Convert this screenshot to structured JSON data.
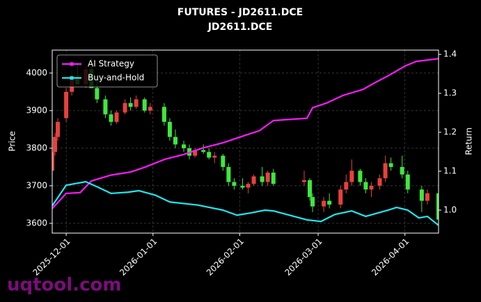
{
  "chart_data": {
    "type": "candlestick",
    "title": "FUTURES - JD2611.DCE",
    "subtitle": "JD2611.DCE",
    "ylabel": "Price",
    "y2label": "Return",
    "watermark": "uqtool.com",
    "x": [
      "2025-11-26",
      "2025-11-27",
      "2025-11-28",
      "2025-12-01",
      "2025-12-03",
      "2025-12-05",
      "2025-12-08",
      "2025-12-10",
      "2025-12-12",
      "2025-12-15",
      "2025-12-17",
      "2025-12-19",
      "2025-12-22",
      "2025-12-24",
      "2025-12-26",
      "2025-12-29",
      "2025-12-31",
      "2026-01-05",
      "2026-01-07",
      "2026-01-09",
      "2026-01-12",
      "2026-01-14",
      "2026-01-16",
      "2026-01-19",
      "2026-01-21",
      "2026-01-23",
      "2026-01-26",
      "2026-01-28",
      "2026-01-30",
      "2026-02-02",
      "2026-02-04",
      "2026-02-06",
      "2026-02-09",
      "2026-02-11",
      "2026-02-13",
      "2026-02-24",
      "2026-02-26",
      "2026-02-27",
      "2026-03-03",
      "2026-03-05",
      "2026-03-09",
      "2026-03-11",
      "2026-03-13",
      "2026-03-16",
      "2026-03-18",
      "2026-03-20",
      "2026-03-23",
      "2026-03-25",
      "2026-03-27",
      "2026-03-31",
      "2026-04-02",
      "2026-04-07",
      "2026-04-09",
      "2026-04-13"
    ],
    "open": [
      3740,
      3790,
      3830,
      3880,
      3950,
      3990,
      3970,
      4010,
      3960,
      3930,
      3890,
      3870,
      3895,
      3920,
      3910,
      3930,
      3900,
      3910,
      3870,
      3830,
      3810,
      3800,
      3780,
      3795,
      3790,
      3775,
      3780,
      3750,
      3710,
      3700,
      3695,
      3705,
      3725,
      3710,
      3735,
      3710,
      3715,
      3670,
      3645,
      3660,
      3650,
      3690,
      3710,
      3740,
      3710,
      3690,
      3700,
      3720,
      3760,
      3750,
      3730,
      3690,
      3660,
      3680
    ],
    "high": [
      3800,
      3840,
      3880,
      3960,
      4010,
      4030,
      4020,
      4040,
      3980,
      3940,
      3900,
      3900,
      3930,
      3935,
      3940,
      3935,
      3920,
      3920,
      3880,
      3850,
      3820,
      3810,
      3800,
      3810,
      3800,
      3790,
      3785,
      3760,
      3720,
      3720,
      3710,
      3730,
      3750,
      3740,
      3745,
      3740,
      3720,
      3680,
      3670,
      3680,
      3700,
      3730,
      3770,
      3745,
      3720,
      3710,
      3730,
      3780,
      3775,
      3780,
      3740,
      3700,
      3690,
      3690
    ],
    "low": [
      3730,
      3780,
      3820,
      3870,
      3940,
      3970,
      3960,
      3960,
      3920,
      3880,
      3860,
      3865,
      3890,
      3900,
      3905,
      3895,
      3890,
      3860,
      3820,
      3800,
      3790,
      3770,
      3775,
      3785,
      3770,
      3760,
      3740,
      3700,
      3690,
      3690,
      3680,
      3700,
      3700,
      3700,
      3700,
      3700,
      3660,
      3630,
      3630,
      3640,
      3640,
      3680,
      3700,
      3700,
      3680,
      3670,
      3690,
      3710,
      3740,
      3720,
      3680,
      3630,
      3650,
      3600
    ],
    "close": [
      3790,
      3830,
      3870,
      3950,
      3990,
      3970,
      4010,
      3960,
      3930,
      3890,
      3870,
      3895,
      3920,
      3910,
      3930,
      3900,
      3910,
      3870,
      3830,
      3810,
      3800,
      3780,
      3795,
      3790,
      3775,
      3780,
      3750,
      3710,
      3700,
      3695,
      3705,
      3725,
      3710,
      3735,
      3705,
      3715,
      3670,
      3645,
      3660,
      3650,
      3690,
      3710,
      3740,
      3710,
      3690,
      3700,
      3720,
      3760,
      3750,
      3730,
      3690,
      3660,
      3680,
      3610
    ],
    "up_color": "#e8413c",
    "down_color": "#3ee83e",
    "series": [
      {
        "name": "AI Strategy",
        "color": "#ff1aff",
        "axis": "y2",
        "x": [
          "2025-11-26",
          "2025-12-01",
          "2025-12-06",
          "2025-12-08",
          "2025-12-10",
          "2025-12-17",
          "2025-12-24",
          "2025-12-29",
          "2026-01-05",
          "2026-01-12",
          "2026-01-19",
          "2026-01-26",
          "2026-02-02",
          "2026-02-08",
          "2026-02-13",
          "2026-02-25",
          "2026-02-27",
          "2026-03-04",
          "2026-03-10",
          "2026-03-17",
          "2026-03-22",
          "2026-03-26",
          "2026-04-01",
          "2026-04-05",
          "2026-04-13"
        ],
        "values": [
          1.004,
          1.043,
          1.045,
          1.06,
          1.075,
          1.09,
          1.098,
          1.11,
          1.13,
          1.143,
          1.16,
          1.173,
          1.19,
          1.204,
          1.23,
          1.236,
          1.263,
          1.275,
          1.295,
          1.31,
          1.33,
          1.345,
          1.37,
          1.382,
          1.389
        ]
      },
      {
        "name": "Buy-and-Hold",
        "color": "#1ee8f0",
        "axis": "y2",
        "x": [
          "2025-11-26",
          "2025-12-01",
          "2025-12-08",
          "2025-12-12",
          "2025-12-17",
          "2025-12-23",
          "2025-12-27",
          "2026-01-02",
          "2026-01-07",
          "2026-01-17",
          "2026-01-26",
          "2026-01-31",
          "2026-02-05",
          "2026-02-10",
          "2026-02-13",
          "2026-02-25",
          "2026-03-02",
          "2026-03-07",
          "2026-03-13",
          "2026-03-18",
          "2026-03-26",
          "2026-03-29",
          "2026-04-02",
          "2026-04-06",
          "2026-04-09",
          "2026-04-13"
        ],
        "values": [
          1.011,
          1.064,
          1.073,
          1.06,
          1.043,
          1.046,
          1.05,
          1.038,
          1.021,
          1.013,
          1.0,
          0.987,
          0.993,
          1.0,
          0.998,
          0.975,
          0.971,
          0.989,
          0.998,
          0.984,
          1.0,
          1.007,
          1.0,
          0.98,
          0.984,
          0.961
        ]
      }
    ],
    "xlim": [
      "2025-11-26",
      "2026-04-13"
    ],
    "xticks": [
      "2025-12-01",
      "2026-01-01",
      "2026-02-01",
      "2026-03-01",
      "2026-04-01"
    ],
    "ylim": [
      3574,
      4061
    ],
    "yticks": [
      3600,
      3700,
      3800,
      3900,
      4000
    ],
    "y2lim": [
      0.941,
      1.411
    ],
    "y2ticks": [
      {
        "value": 1,
        "label": "1.0"
      },
      1.1,
      1.2,
      1.3,
      1.4
    ],
    "grid": true,
    "legend": "upper left"
  }
}
